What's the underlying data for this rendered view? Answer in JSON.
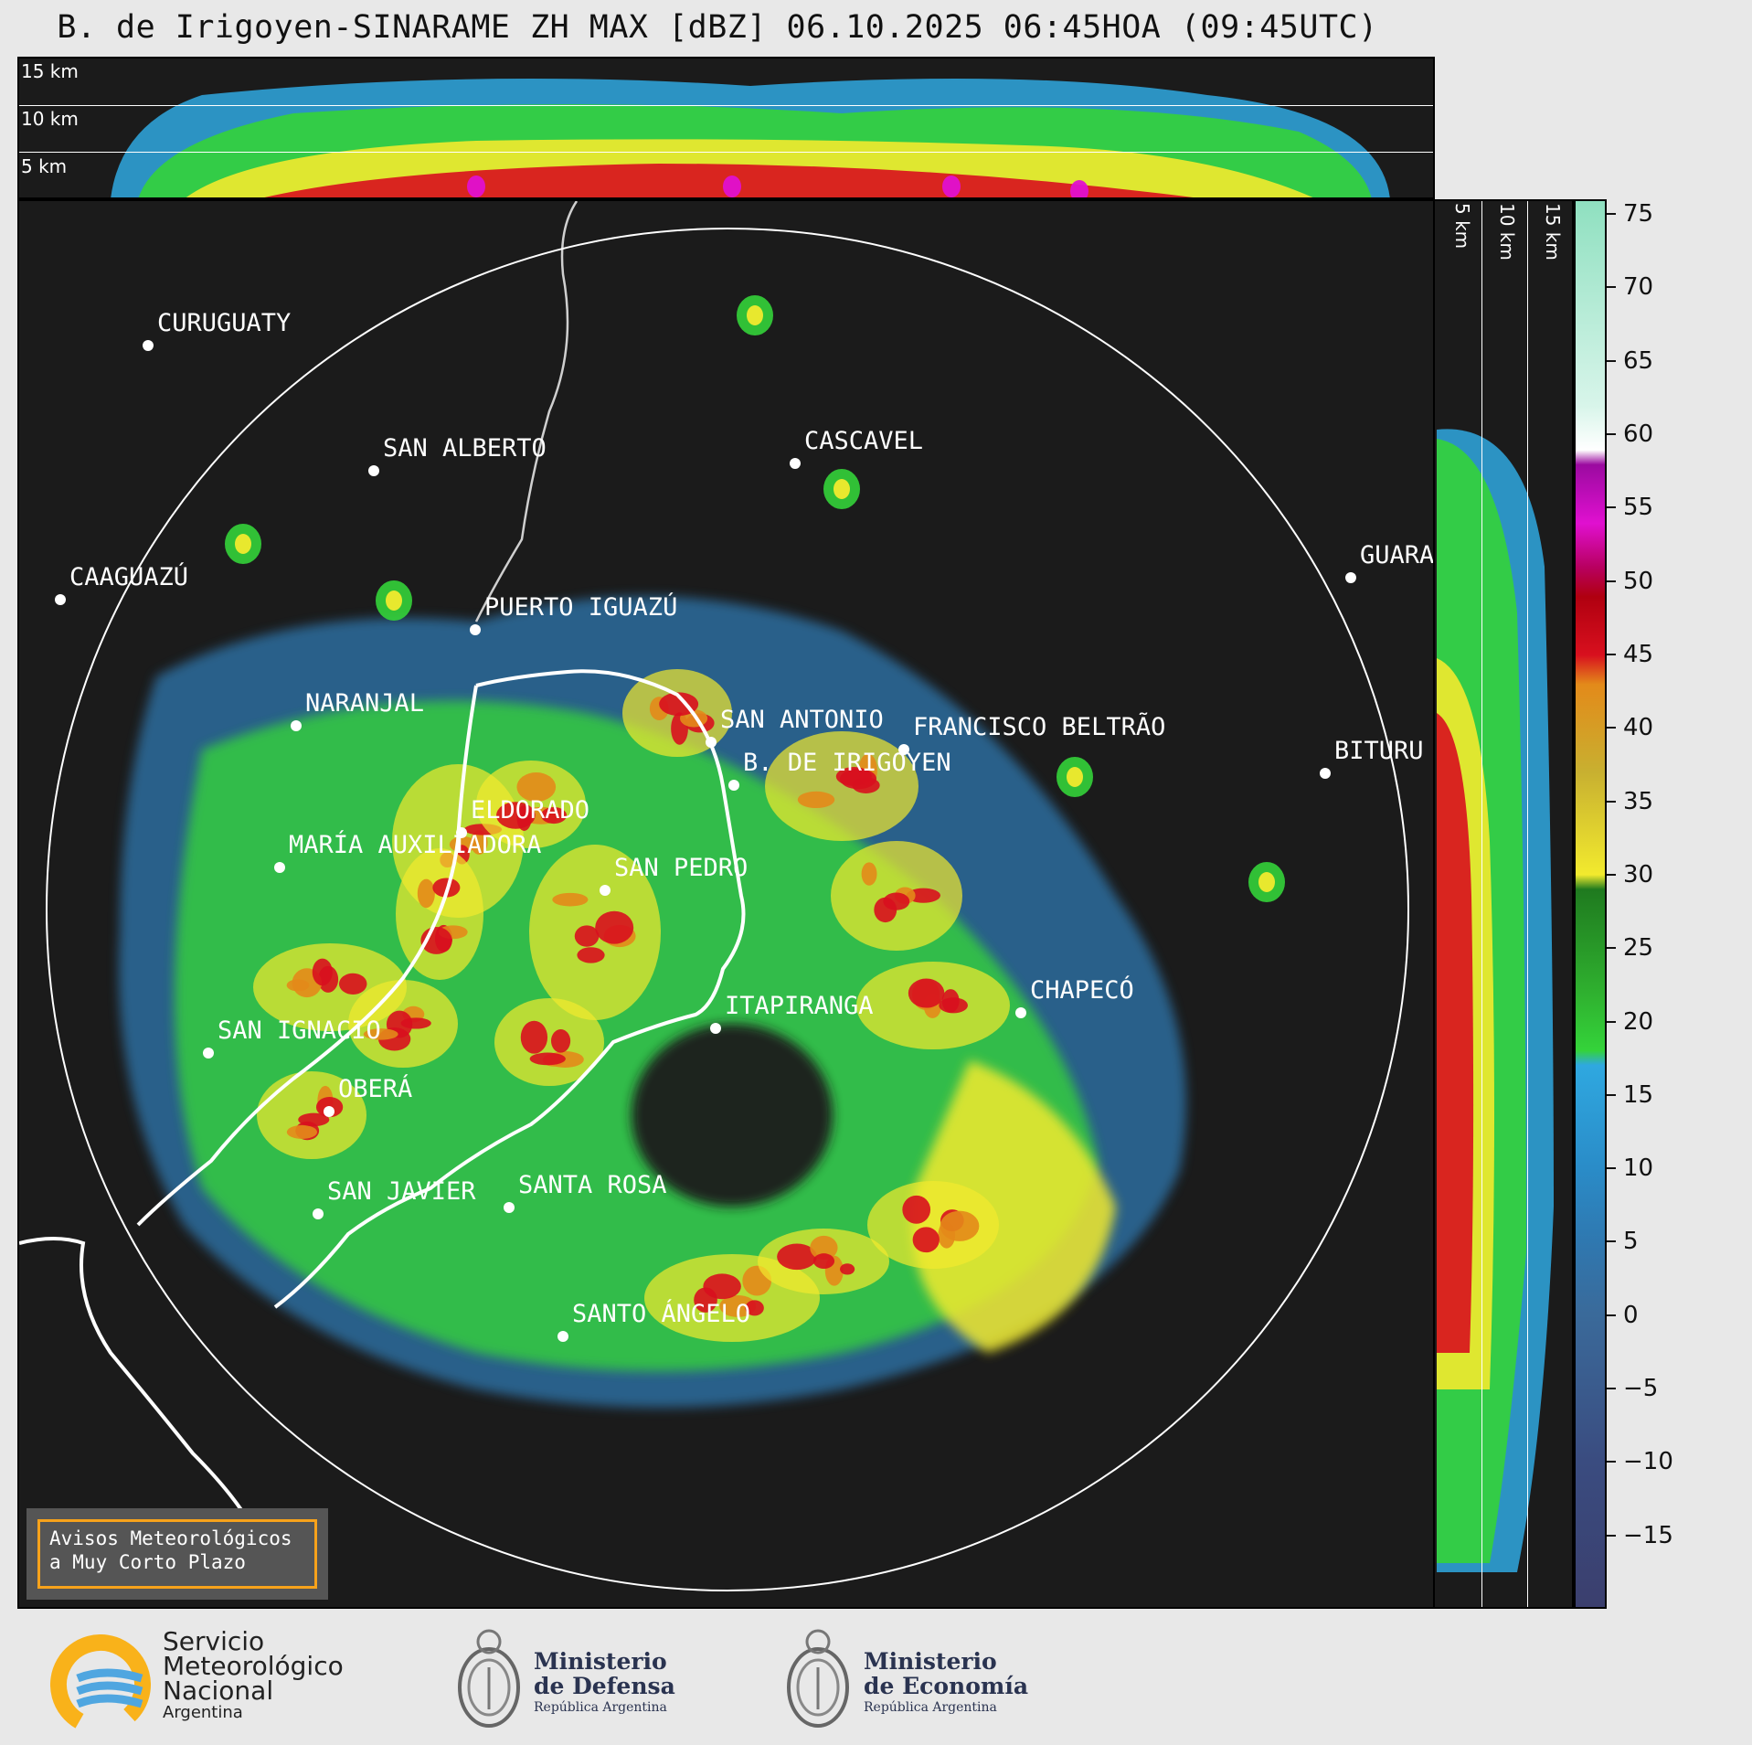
{
  "title": "B. de Irigoyen-SINARAME ZH MAX [dBZ] 06.10.2025 06:45HOA (09:45UTC)",
  "top_cross_section": {
    "altitude_labels": [
      "15 km",
      "10 km",
      "5 km"
    ]
  },
  "side_cross_section": {
    "altitude_labels": [
      "5 km",
      "10 km",
      "15 km"
    ]
  },
  "colorbar": {
    "unit": "dBZ",
    "ticks": [
      "75",
      "70",
      "65",
      "60",
      "55",
      "50",
      "45",
      "40",
      "35",
      "30",
      "25",
      "20",
      "15",
      "10",
      "5",
      "0",
      "−5",
      "−10",
      "−15"
    ],
    "min": -20,
    "max": 76,
    "colors": {
      "low": "#3b3f6e",
      "blue_mid": "#2f78b0",
      "cyan": "#2fa8e0",
      "green": "#34d33a",
      "dark_green": "#1f7a1f",
      "yellow": "#f2ea2e",
      "orange": "#e38a1a",
      "red": "#d8101e",
      "magenta": "#e010d0",
      "white": "#ffffff",
      "mint": "#8fe0c0"
    }
  },
  "cities": [
    {
      "name": "CURUGUATY",
      "icon": "city-dot-icon"
    },
    {
      "name": "SAN ALBERTO",
      "icon": "city-dot-icon"
    },
    {
      "name": "CASCAVEL",
      "icon": "city-dot-icon"
    },
    {
      "name": "CAAGUAZÚ",
      "icon": "city-dot-icon"
    },
    {
      "name": "GUARA",
      "icon": "city-dot-icon"
    },
    {
      "name": "PUERTO IGUAZÚ",
      "icon": "city-dot-icon"
    },
    {
      "name": "NARANJAL",
      "icon": "city-dot-icon"
    },
    {
      "name": "SAN ANTONIO",
      "icon": "city-dot-icon"
    },
    {
      "name": "FRANCISCO BELTRÃO",
      "icon": "city-dot-icon"
    },
    {
      "name": "BITURU",
      "icon": "city-dot-icon"
    },
    {
      "name": "B. DE IRIGOYEN",
      "icon": "city-dot-icon"
    },
    {
      "name": "ELDORADO",
      "icon": "city-dot-icon"
    },
    {
      "name": "MARÍA AUXILIADORA",
      "icon": "city-dot-icon"
    },
    {
      "name": "SAN PEDRO",
      "icon": "city-dot-icon"
    },
    {
      "name": "CHAPECÓ",
      "icon": "city-dot-icon"
    },
    {
      "name": "ITAPIRANGA",
      "icon": "city-dot-icon"
    },
    {
      "name": "SAN IGNACIO",
      "icon": "city-dot-icon"
    },
    {
      "name": "OBERÁ",
      "icon": "city-dot-icon"
    },
    {
      "name": "SAN JAVIER",
      "icon": "city-dot-icon"
    },
    {
      "name": "SANTA ROSA",
      "icon": "city-dot-icon"
    },
    {
      "name": "SANTO ÁNGELO",
      "icon": "city-dot-icon"
    }
  ],
  "warning_box": {
    "line1": "Avisos Meteorológicos",
    "line2": "a Muy Corto Plazo",
    "border_color": "#f7a21b"
  },
  "footer": {
    "smn": {
      "line1": "Servicio",
      "line2": "Meteorológico",
      "line3": "Nacional",
      "line4": "Argentina"
    },
    "defensa": {
      "line1": "Ministerio",
      "line2": "de Defensa",
      "line3": "República Argentina"
    },
    "economia": {
      "line1": "Ministerio",
      "line2": "de Economía",
      "line3": "República Argentina"
    }
  }
}
